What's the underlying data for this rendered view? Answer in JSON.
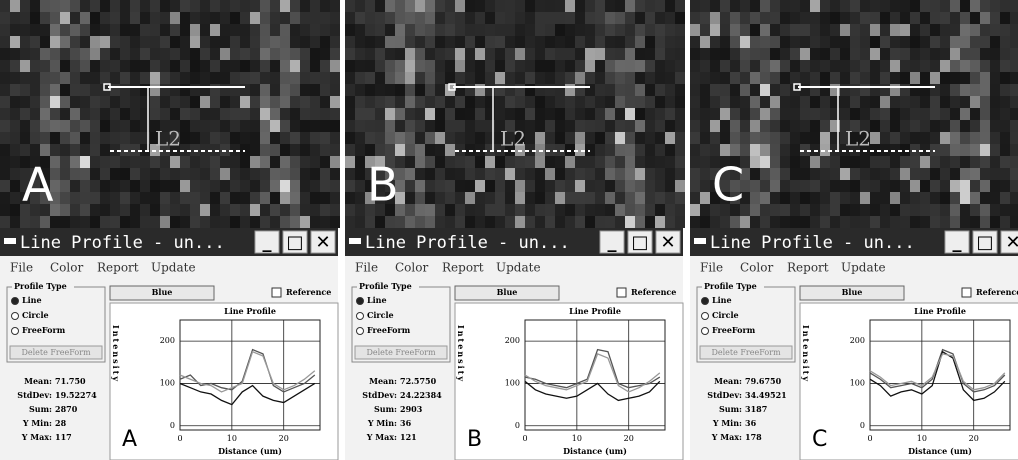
{
  "panels": [
    {
      "image_label": "A",
      "annotation": "L2",
      "window": {
        "title": "Line Profile - un...",
        "menu": [
          "File",
          "Color",
          "Report",
          "Update"
        ],
        "profile_type": {
          "title": "Profile Type",
          "options": [
            "Line",
            "Circle",
            "FreeForm"
          ],
          "button": "Delete FreeForm"
        },
        "color_button": "Blue",
        "reference": "Reference",
        "stats": [
          {
            "label": "Mean:",
            "value": "71.750"
          },
          {
            "label": "StdDev:",
            "value": "19.52274"
          },
          {
            "label": "Sum:",
            "value": "2870"
          },
          {
            "label": "Y Min:",
            "value": "28"
          },
          {
            "label": "Y Max:",
            "value": "117"
          }
        ],
        "chart": {
          "type": "line",
          "title": "Line Profile",
          "xlabel": "Distance (um)",
          "ylabel": "Intensity",
          "panel_label": "A",
          "xlim": [
            0,
            27
          ],
          "ylim": [
            -10,
            250
          ],
          "xticks": [
            0,
            10,
            20
          ],
          "yticks": [
            0,
            100,
            200
          ],
          "grid": true,
          "x": [
            0,
            2,
            4,
            6,
            8,
            10,
            12,
            14,
            16,
            18,
            20,
            22,
            24,
            26
          ],
          "series": [
            {
              "color": "#555555",
              "values": [
                110,
                120,
                95,
                100,
                90,
                85,
                105,
                180,
                170,
                95,
                80,
                90,
                100,
                120
              ]
            },
            {
              "color": "#111111",
              "values": [
                100,
                90,
                80,
                75,
                60,
                50,
                80,
                95,
                70,
                60,
                55,
                70,
                85,
                100
              ]
            },
            {
              "color": "#999999",
              "values": [
                120,
                110,
                100,
                95,
                80,
                90,
                100,
                175,
                165,
                100,
                85,
                95,
                110,
                130
              ]
            }
          ]
        }
      }
    },
    {
      "image_label": "B",
      "annotation": "L2",
      "window": {
        "title": "Line Profile - un...",
        "menu": [
          "File",
          "Color",
          "Report",
          "Update"
        ],
        "profile_type": {
          "title": "Profile Type",
          "options": [
            "Line",
            "Circle",
            "FreeForm"
          ],
          "button": "Delete FreeForm"
        },
        "color_button": "Blue",
        "reference": "Reference",
        "stats": [
          {
            "label": "Mean:",
            "value": "72.5750"
          },
          {
            "label": "StdDev:",
            "value": "24.22384"
          },
          {
            "label": "Sum:",
            "value": "2903"
          },
          {
            "label": "Y Min:",
            "value": "36"
          },
          {
            "label": "Y Max:",
            "value": "121"
          }
        ],
        "chart": {
          "type": "line",
          "title": "Line Profile",
          "xlabel": "Distance (um)",
          "ylabel": "Intensity",
          "panel_label": "B",
          "xlim": [
            0,
            27
          ],
          "ylim": [
            -10,
            250
          ],
          "xticks": [
            0,
            10,
            20
          ],
          "yticks": [
            0,
            100,
            200
          ],
          "grid": true,
          "x": [
            0,
            2,
            4,
            6,
            8,
            10,
            12,
            14,
            16,
            18,
            20,
            22,
            24,
            26
          ],
          "series": [
            {
              "color": "#555555",
              "values": [
                115,
                110,
                100,
                95,
                90,
                100,
                110,
                180,
                175,
                100,
                90,
                95,
                100,
                115
              ]
            },
            {
              "color": "#111111",
              "values": [
                105,
                85,
                75,
                70,
                65,
                70,
                85,
                100,
                75,
                60,
                65,
                70,
                80,
                105
              ]
            },
            {
              "color": "#999999",
              "values": [
                120,
                105,
                95,
                90,
                85,
                95,
                105,
                170,
                160,
                95,
                80,
                90,
                105,
                125
              ]
            }
          ]
        }
      }
    },
    {
      "image_label": "C",
      "annotation": "L2",
      "window": {
        "title": "Line Profile - un...",
        "menu": [
          "File",
          "Color",
          "Report",
          "Update"
        ],
        "profile_type": {
          "title": "Profile Type",
          "options": [
            "Line",
            "Circle",
            "FreeForm"
          ],
          "button": "Delete FreeForm"
        },
        "color_button": "Blue",
        "reference": "Reference",
        "stats": [
          {
            "label": "Mean:",
            "value": "79.6750"
          },
          {
            "label": "StdDev:",
            "value": "34.49521"
          },
          {
            "label": "Sum:",
            "value": "3187"
          },
          {
            "label": "Y Min:",
            "value": "36"
          },
          {
            "label": "Y Max:",
            "value": "178"
          }
        ],
        "chart": {
          "type": "line",
          "title": "Line Profile",
          "xlabel": "Distance (um)",
          "ylabel": "Intensity",
          "panel_label": "C",
          "xlim": [
            0,
            27
          ],
          "ylim": [
            -10,
            250
          ],
          "xticks": [
            0,
            10,
            20
          ],
          "yticks": [
            0,
            100,
            200
          ],
          "grid": true,
          "x": [
            0,
            2,
            4,
            6,
            8,
            10,
            12,
            14,
            16,
            18,
            20,
            22,
            24,
            26
          ],
          "series": [
            {
              "color": "#555555",
              "values": [
                125,
                110,
                90,
                95,
                100,
                90,
                110,
                180,
                170,
                100,
                80,
                85,
                95,
                120
              ]
            },
            {
              "color": "#111111",
              "values": [
                110,
                95,
                70,
                80,
                85,
                75,
                95,
                175,
                160,
                85,
                60,
                65,
                80,
                105
              ]
            },
            {
              "color": "#999999",
              "values": [
                130,
                115,
                95,
                100,
                105,
                95,
                115,
                170,
                165,
                105,
                85,
                90,
                100,
                125
              ]
            }
          ]
        }
      }
    }
  ]
}
